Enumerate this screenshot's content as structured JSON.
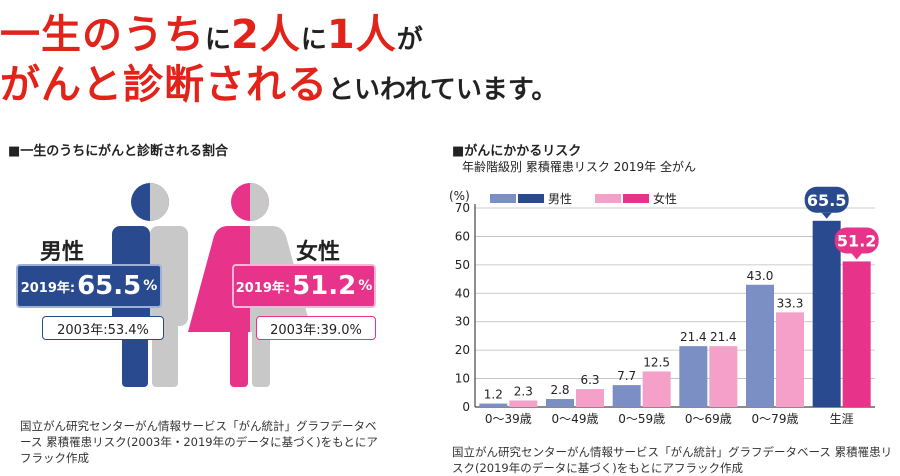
{
  "headline": {
    "line1": [
      {
        "text": "一生のうち",
        "style": "big"
      },
      {
        "text": "に",
        "style": "small"
      },
      {
        "text": "2人",
        "style": "big"
      },
      {
        "text": "に",
        "style": "small"
      },
      {
        "text": "1人",
        "style": "big"
      },
      {
        "text": "が",
        "style": "small"
      }
    ],
    "line2": [
      {
        "text": "がんと診断される",
        "style": "big"
      },
      {
        "text": "といわれています。",
        "style": "small"
      }
    ]
  },
  "left": {
    "title": "■一生のうちにがんと診断される割合",
    "male": {
      "label": "男性",
      "year_2019": "2019年:",
      "rate_2019": "65.5",
      "unit": "%",
      "text_2003": "2003年:53.4%",
      "color": "#2a4a8f"
    },
    "female": {
      "label": "女性",
      "year_2019": "2019年:",
      "rate_2019": "51.2",
      "unit": "%",
      "text_2003": "2003年:39.0%",
      "color": "#e8338a"
    },
    "source": "国立がん研究センターがん情報サービス「がん統計」グラフデータベース 累積罹患リスク(2003年・2019年のデータに基づく)をもとにアフラック作成"
  },
  "right": {
    "title": "■がんにかかるリスク",
    "subtitle": "年齢階級別 累積罹患リスク 2019年 全がん",
    "source": "国立がん研究センターがん情報サービス「がん統計」グラフデータベース 累積罹患リスク(2019年のデータに基づく)をもとにアフラック作成"
  },
  "chart_data": {
    "type": "bar",
    "title": "がんにかかるリスク",
    "subtitle": "年齢階級別 累積罹患リスク 2019年 全がん",
    "ylabel": "(%)",
    "ylim": [
      0,
      70
    ],
    "yticks": [
      0,
      10,
      20,
      30,
      40,
      50,
      60,
      70
    ],
    "categories": [
      "0〜39歳",
      "0〜49歳",
      "0〜59歳",
      "0〜69歳",
      "0〜79歳",
      "生涯"
    ],
    "series": [
      {
        "name": "男性",
        "values": [
          1.2,
          2.8,
          7.7,
          21.4,
          43.0,
          65.5
        ],
        "colors": [
          "#7b8fc4",
          "#7b8fc4",
          "#7b8fc4",
          "#7b8fc4",
          "#7b8fc4",
          "#2a4a8f"
        ],
        "labels": [
          "1.2",
          "2.8",
          "7.7",
          "21.4",
          "43.0",
          "65.5"
        ]
      },
      {
        "name": "女性",
        "values": [
          2.3,
          6.3,
          12.5,
          21.4,
          33.3,
          51.2
        ],
        "colors": [
          "#f4a0c8",
          "#f4a0c8",
          "#f4a0c8",
          "#f4a0c8",
          "#f4a0c8",
          "#e8338a"
        ],
        "labels": [
          "2.3",
          "6.3",
          "12.5",
          "21.4",
          "33.3",
          "51.2"
        ]
      }
    ],
    "legend": {
      "position": "top-left",
      "male_colors": [
        "#7b8fc4",
        "#2a4a8f"
      ],
      "female_colors": [
        "#f4a0c8",
        "#e8338a"
      ]
    },
    "grid": true
  }
}
